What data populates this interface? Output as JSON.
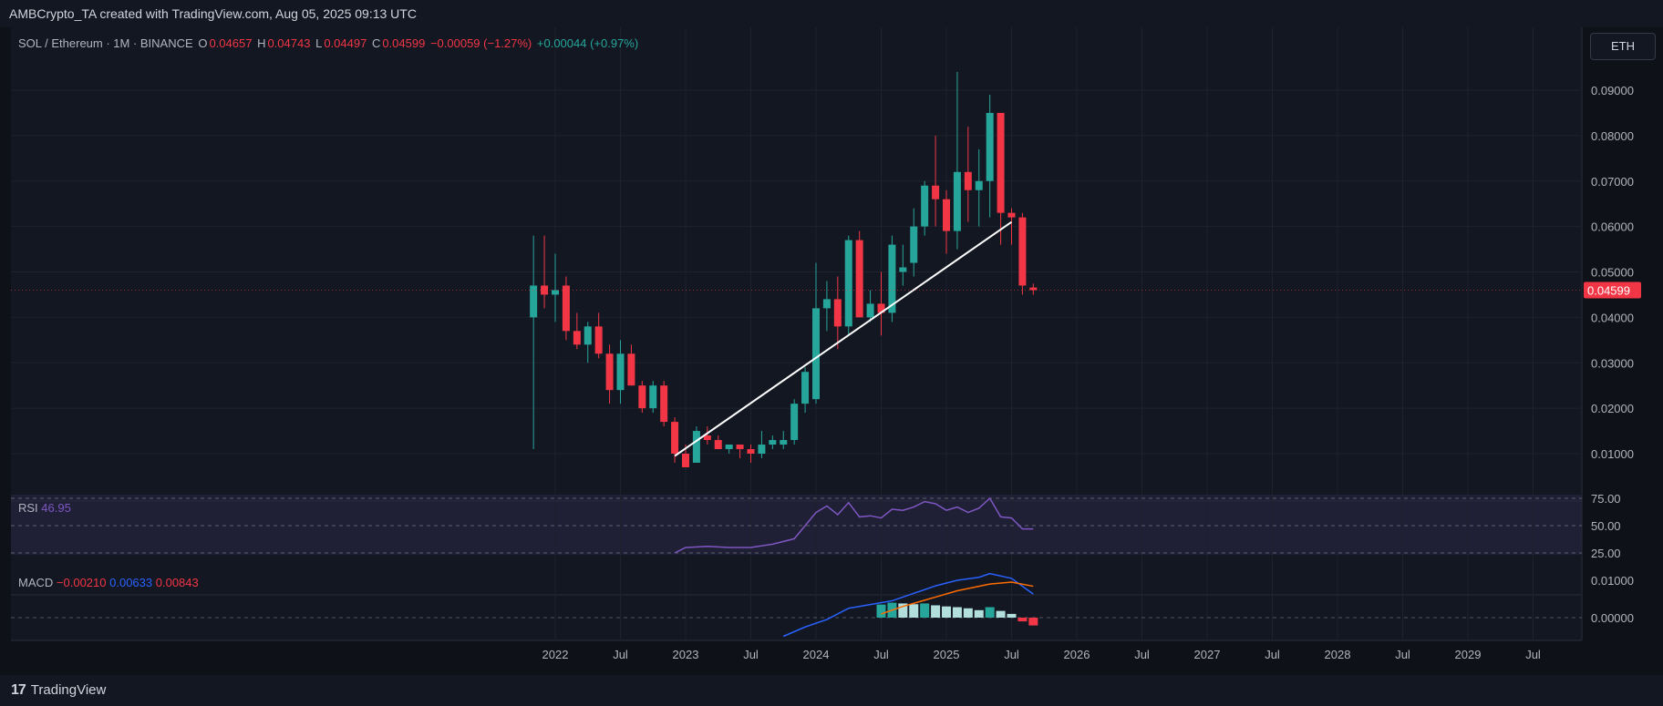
{
  "header": {
    "text": "AMBCrypto_TA created with TradingView.com, Aug 05, 2025 09:13 UTC"
  },
  "legend": {
    "symbol": "SOL / Ethereum · 1M · BINANCE",
    "o_label": "O",
    "o_value": "0.04657",
    "h_label": "H",
    "h_value": "0.04743",
    "l_label": "L",
    "l_value": "0.04497",
    "c_label": "C",
    "c_value": "0.04599",
    "change": "−0.00059 (−1.27%)",
    "change2": "+0.00044 (+0.97%)"
  },
  "currency_button": "ETH",
  "last_price": "0.04599",
  "rsi": {
    "label": "RSI",
    "value": "46.95"
  },
  "macd": {
    "label": "MACD",
    "hist": "−0.00210",
    "macd": "0.00633",
    "signal": "0.00843"
  },
  "footer": {
    "brand": "TradingView"
  },
  "colors": {
    "up": "#26a69a",
    "down": "#f23645",
    "background": "#131722",
    "rsi_line": "#7e57c2",
    "macd_line": "#2962ff",
    "signal_line": "#ff6d00"
  },
  "chart_data": {
    "type": "candlestick",
    "symbol": "SOL/ETH",
    "timeframe": "1M",
    "exchange": "BINANCE",
    "price_axis": {
      "ticks": [
        "0.01000",
        "0.02000",
        "0.03000",
        "0.04000",
        "0.05000",
        "0.06000",
        "0.07000",
        "0.08000",
        "0.09000"
      ],
      "min": 0.0,
      "max": 0.098
    },
    "time_axis": {
      "ticks": [
        "2022",
        "Jul",
        "2023",
        "Jul",
        "2024",
        "Jul",
        "2025",
        "Jul",
        "2026",
        "Jul",
        "2027",
        "Jul",
        "2028",
        "Jul",
        "2029",
        "Jul"
      ]
    },
    "candles": [
      {
        "t": "2021-11",
        "o": 0.04,
        "h": 0.058,
        "l": 0.011,
        "c": 0.047
      },
      {
        "t": "2021-12",
        "o": 0.047,
        "h": 0.058,
        "l": 0.042,
        "c": 0.045
      },
      {
        "t": "2022-01",
        "o": 0.045,
        "h": 0.054,
        "l": 0.039,
        "c": 0.046
      },
      {
        "t": "2022-02",
        "o": 0.047,
        "h": 0.049,
        "l": 0.035,
        "c": 0.037
      },
      {
        "t": "2022-03",
        "o": 0.037,
        "h": 0.041,
        "l": 0.033,
        "c": 0.034
      },
      {
        "t": "2022-04",
        "o": 0.034,
        "h": 0.039,
        "l": 0.03,
        "c": 0.038
      },
      {
        "t": "2022-05",
        "o": 0.038,
        "h": 0.041,
        "l": 0.031,
        "c": 0.032
      },
      {
        "t": "2022-06",
        "o": 0.032,
        "h": 0.034,
        "l": 0.021,
        "c": 0.024
      },
      {
        "t": "2022-07",
        "o": 0.024,
        "h": 0.035,
        "l": 0.021,
        "c": 0.032
      },
      {
        "t": "2022-08",
        "o": 0.032,
        "h": 0.034,
        "l": 0.025,
        "c": 0.025
      },
      {
        "t": "2022-09",
        "o": 0.025,
        "h": 0.026,
        "l": 0.019,
        "c": 0.02
      },
      {
        "t": "2022-10",
        "o": 0.02,
        "h": 0.026,
        "l": 0.019,
        "c": 0.025
      },
      {
        "t": "2022-11",
        "o": 0.025,
        "h": 0.026,
        "l": 0.016,
        "c": 0.017
      },
      {
        "t": "2022-12",
        "o": 0.017,
        "h": 0.018,
        "l": 0.008,
        "c": 0.01
      },
      {
        "t": "2023-01",
        "o": 0.01,
        "h": 0.012,
        "l": 0.007,
        "c": 0.007
      },
      {
        "t": "2023-02",
        "o": 0.008,
        "h": 0.016,
        "l": 0.008,
        "c": 0.015
      },
      {
        "t": "2023-03",
        "o": 0.014,
        "h": 0.016,
        "l": 0.012,
        "c": 0.013
      },
      {
        "t": "2023-04",
        "o": 0.013,
        "h": 0.014,
        "l": 0.011,
        "c": 0.011
      },
      {
        "t": "2023-05",
        "o": 0.011,
        "h": 0.012,
        "l": 0.01,
        "c": 0.012
      },
      {
        "t": "2023-06",
        "o": 0.012,
        "h": 0.012,
        "l": 0.009,
        "c": 0.011
      },
      {
        "t": "2023-07",
        "o": 0.011,
        "h": 0.012,
        "l": 0.008,
        "c": 0.01
      },
      {
        "t": "2023-08",
        "o": 0.01,
        "h": 0.015,
        "l": 0.009,
        "c": 0.012
      },
      {
        "t": "2023-09",
        "o": 0.012,
        "h": 0.014,
        "l": 0.011,
        "c": 0.013
      },
      {
        "t": "2023-10",
        "o": 0.012,
        "h": 0.015,
        "l": 0.011,
        "c": 0.013
      },
      {
        "t": "2023-11",
        "o": 0.013,
        "h": 0.022,
        "l": 0.012,
        "c": 0.021
      },
      {
        "t": "2023-12",
        "o": 0.021,
        "h": 0.029,
        "l": 0.019,
        "c": 0.028
      },
      {
        "t": "2024-01",
        "o": 0.022,
        "h": 0.052,
        "l": 0.021,
        "c": 0.042
      },
      {
        "t": "2024-02",
        "o": 0.042,
        "h": 0.048,
        "l": 0.037,
        "c": 0.044
      },
      {
        "t": "2024-03",
        "o": 0.044,
        "h": 0.049,
        "l": 0.033,
        "c": 0.038
      },
      {
        "t": "2024-04",
        "o": 0.038,
        "h": 0.058,
        "l": 0.036,
        "c": 0.057
      },
      {
        "t": "2024-05",
        "o": 0.057,
        "h": 0.059,
        "l": 0.04,
        "c": 0.04
      },
      {
        "t": "2024-06",
        "o": 0.04,
        "h": 0.046,
        "l": 0.039,
        "c": 0.043
      },
      {
        "t": "2024-07",
        "o": 0.043,
        "h": 0.05,
        "l": 0.036,
        "c": 0.041
      },
      {
        "t": "2024-08",
        "o": 0.041,
        "h": 0.058,
        "l": 0.039,
        "c": 0.056
      },
      {
        "t": "2024-09",
        "o": 0.05,
        "h": 0.056,
        "l": 0.047,
        "c": 0.051
      },
      {
        "t": "2024-10",
        "o": 0.052,
        "h": 0.064,
        "l": 0.049,
        "c": 0.06
      },
      {
        "t": "2024-11",
        "o": 0.06,
        "h": 0.07,
        "l": 0.058,
        "c": 0.069
      },
      {
        "t": "2024-12",
        "o": 0.069,
        "h": 0.08,
        "l": 0.06,
        "c": 0.066
      },
      {
        "t": "2025-01",
        "o": 0.066,
        "h": 0.068,
        "l": 0.054,
        "c": 0.059
      },
      {
        "t": "2025-02",
        "o": 0.059,
        "h": 0.094,
        "l": 0.055,
        "c": 0.072
      },
      {
        "t": "2025-03",
        "o": 0.072,
        "h": 0.082,
        "l": 0.061,
        "c": 0.068
      },
      {
        "t": "2025-04",
        "o": 0.068,
        "h": 0.077,
        "l": 0.06,
        "c": 0.07
      },
      {
        "t": "2025-05",
        "o": 0.07,
        "h": 0.089,
        "l": 0.062,
        "c": 0.085
      },
      {
        "t": "2025-06",
        "o": 0.085,
        "h": 0.085,
        "l": 0.056,
        "c": 0.063
      },
      {
        "t": "2025-07",
        "o": 0.063,
        "h": 0.064,
        "l": 0.056,
        "c": 0.062
      },
      {
        "t": "2025-08",
        "o": 0.062,
        "h": 0.063,
        "l": 0.045,
        "c": 0.047
      },
      {
        "t": "2025-09",
        "o": 0.04657,
        "h": 0.04743,
        "l": 0.04497,
        "c": 0.04599
      }
    ],
    "trendline": {
      "from": {
        "t": "2022-12",
        "price": 0.0095
      },
      "to": {
        "t": "2025-07",
        "price": 0.061
      }
    },
    "rsi": {
      "levels": [
        "75.00",
        "50.00",
        "25.00"
      ],
      "values": [
        {
          "t": "2022-12",
          "v": 25
        },
        {
          "t": "2023-01",
          "v": 30
        },
        {
          "t": "2023-03",
          "v": 31
        },
        {
          "t": "2023-05",
          "v": 30
        },
        {
          "t": "2023-07",
          "v": 30
        },
        {
          "t": "2023-09",
          "v": 33
        },
        {
          "t": "2023-11",
          "v": 38
        },
        {
          "t": "2024-01",
          "v": 62
        },
        {
          "t": "2024-02",
          "v": 68
        },
        {
          "t": "2024-03",
          "v": 60
        },
        {
          "t": "2024-04",
          "v": 71
        },
        {
          "t": "2024-05",
          "v": 58
        },
        {
          "t": "2024-06",
          "v": 59
        },
        {
          "t": "2024-07",
          "v": 57
        },
        {
          "t": "2024-08",
          "v": 65
        },
        {
          "t": "2024-09",
          "v": 64
        },
        {
          "t": "2024-10",
          "v": 67
        },
        {
          "t": "2024-11",
          "v": 72
        },
        {
          "t": "2024-12",
          "v": 70
        },
        {
          "t": "2025-01",
          "v": 64
        },
        {
          "t": "2025-02",
          "v": 67
        },
        {
          "t": "2025-03",
          "v": 62
        },
        {
          "t": "2025-04",
          "v": 66
        },
        {
          "t": "2025-05",
          "v": 75
        },
        {
          "t": "2025-06",
          "v": 58
        },
        {
          "t": "2025-07",
          "v": 57
        },
        {
          "t": "2025-08",
          "v": 47
        },
        {
          "t": "2025-09",
          "v": 46.95
        }
      ]
    },
    "macd": {
      "ticks": [
        "0.01000",
        "0.00000"
      ],
      "macd_line": [
        {
          "t": "2023-10",
          "v": -0.005
        },
        {
          "t": "2023-12",
          "v": -0.0025
        },
        {
          "t": "2024-02",
          "v": -0.0005
        },
        {
          "t": "2024-04",
          "v": 0.0025
        },
        {
          "t": "2024-06",
          "v": 0.0035
        },
        {
          "t": "2024-08",
          "v": 0.0045
        },
        {
          "t": "2024-10",
          "v": 0.0065
        },
        {
          "t": "2024-12",
          "v": 0.0085
        },
        {
          "t": "2025-02",
          "v": 0.01
        },
        {
          "t": "2025-04",
          "v": 0.0108
        },
        {
          "t": "2025-05",
          "v": 0.0118
        },
        {
          "t": "2025-07",
          "v": 0.0105
        },
        {
          "t": "2025-09",
          "v": 0.0063
        }
      ],
      "signal_line": [
        {
          "t": "2024-07",
          "v": 0.001
        },
        {
          "t": "2024-09",
          "v": 0.003
        },
        {
          "t": "2024-12",
          "v": 0.0055
        },
        {
          "t": "2025-02",
          "v": 0.0072
        },
        {
          "t": "2025-05",
          "v": 0.009
        },
        {
          "t": "2025-07",
          "v": 0.0095
        },
        {
          "t": "2025-09",
          "v": 0.0084
        }
      ],
      "histogram": [
        {
          "t": "2024-07",
          "v": 0.0035
        },
        {
          "t": "2024-08",
          "v": 0.004
        },
        {
          "t": "2024-09",
          "v": 0.0038
        },
        {
          "t": "2024-10",
          "v": 0.0036
        },
        {
          "t": "2024-11",
          "v": 0.0038
        },
        {
          "t": "2024-12",
          "v": 0.0033
        },
        {
          "t": "2025-01",
          "v": 0.003
        },
        {
          "t": "2025-02",
          "v": 0.0028
        },
        {
          "t": "2025-03",
          "v": 0.0025
        },
        {
          "t": "2025-04",
          "v": 0.002
        },
        {
          "t": "2025-05",
          "v": 0.0028
        },
        {
          "t": "2025-06",
          "v": 0.0018
        },
        {
          "t": "2025-07",
          "v": 0.001
        },
        {
          "t": "2025-08",
          "v": -0.001
        },
        {
          "t": "2025-09",
          "v": -0.0021
        }
      ]
    }
  }
}
